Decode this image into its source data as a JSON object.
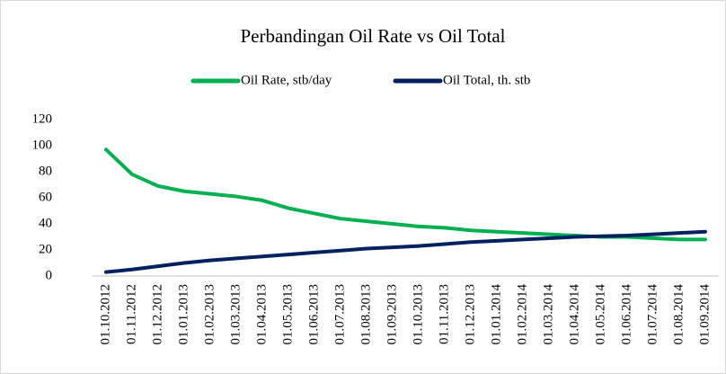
{
  "chart_data": {
    "type": "line",
    "title": "Perbandingan Oil Rate vs Oil Total",
    "categories": [
      "01.10.2012",
      "01.11.2012",
      "01.12.2012",
      "01.01.2013",
      "01.02.2013",
      "01.03.2013",
      "01.04.2013",
      "01.05.2013",
      "01.06.2013",
      "01.07.2013",
      "01.08.2013",
      "01.09.2013",
      "01.10.2013",
      "01.11.2013",
      "01.12.2013",
      "01.01.2014",
      "01.02.2014",
      "01.03.2014",
      "01.04.2014",
      "01.05.2014",
      "01.06.2014",
      "01.07.2014",
      "01.08.2014",
      "01.09.2014"
    ],
    "series": [
      {
        "name": "Oil Rate, stb/day",
        "color": "#00b050",
        "values": [
          97,
          78,
          69,
          65,
          63,
          61,
          58,
          52,
          48,
          44,
          42,
          40,
          38,
          37,
          35,
          34,
          33,
          32,
          31,
          30,
          30,
          29,
          28,
          28
        ]
      },
      {
        "name": "Oil Total, th. stb",
        "color": "#002060",
        "values": [
          3,
          5,
          7.5,
          10,
          12,
          13.5,
          15,
          16.5,
          18,
          19.5,
          21,
          22,
          23,
          24.5,
          26,
          27,
          28,
          29,
          30,
          30.5,
          31,
          32,
          33,
          34
        ]
      }
    ],
    "ylim": [
      0,
      120
    ],
    "yticks": [
      0,
      20,
      40,
      60,
      80,
      100,
      120
    ],
    "grid": false,
    "legend": "top"
  }
}
